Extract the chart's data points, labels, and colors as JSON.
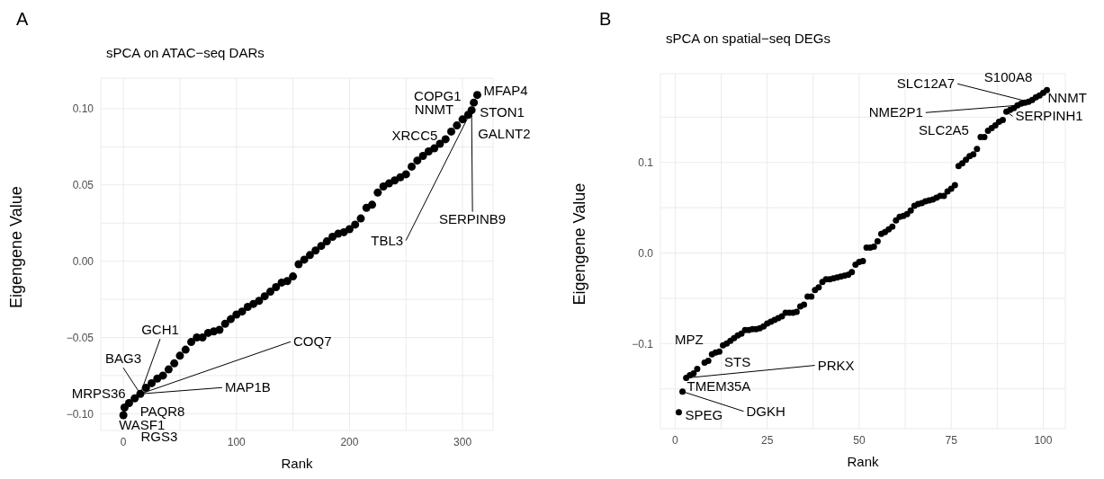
{
  "chart_data": [
    {
      "type": "scatter",
      "title": "sPCA on ATAC−seq DARs",
      "xlabel": "Rank",
      "ylabel": "Eigengene Value",
      "marker": "circle",
      "grid": true,
      "xlim": [
        -20,
        327
      ],
      "ylim": [
        -0.111,
        0.12
      ],
      "xticks": [
        0,
        {
          "value": 50,
          "label": null
        },
        100,
        {
          "value": 150,
          "label": null
        },
        200,
        {
          "value": 250,
          "label": null
        },
        300
      ],
      "yticks": [
        {
          "value": -0.1,
          "label": "−0.10"
        },
        {
          "value": -0.075,
          "label": null
        },
        {
          "value": -0.05,
          "label": "−0.05"
        },
        {
          "value": -0.025,
          "label": null
        },
        {
          "value": 0,
          "label": "0.00"
        },
        {
          "value": 0.025,
          "label": null
        },
        {
          "value": 0.05,
          "label": "0.05"
        },
        {
          "value": 0.075,
          "label": null
        },
        {
          "value": 0.1,
          "label": "0.10"
        }
      ],
      "series": [
        {
          "color": "#000000",
          "x": [
            0,
            1,
            5,
            10,
            15,
            20,
            25,
            30,
            35,
            40,
            45,
            50,
            55,
            60,
            65,
            70,
            75,
            80,
            85,
            90,
            95,
            100,
            105,
            110,
            115,
            120,
            125,
            130,
            135,
            140,
            145,
            150,
            155,
            160,
            165,
            170,
            175,
            180,
            185,
            190,
            195,
            200,
            205,
            210,
            215,
            220,
            225,
            230,
            235,
            240,
            245,
            250,
            255,
            260,
            265,
            270,
            275,
            280,
            285,
            290,
            295,
            300,
            305,
            308,
            310,
            313
          ],
          "values": [
            -0.101,
            -0.096,
            -0.093,
            -0.09,
            -0.087,
            -0.083,
            -0.08,
            -0.077,
            -0.075,
            -0.071,
            -0.067,
            -0.062,
            -0.058,
            -0.053,
            -0.05,
            -0.05,
            -0.047,
            -0.046,
            -0.045,
            -0.041,
            -0.038,
            -0.035,
            -0.033,
            -0.03,
            -0.028,
            -0.026,
            -0.023,
            -0.02,
            -0.017,
            -0.014,
            -0.013,
            -0.01,
            -0.002,
            0.001,
            0.004,
            0.007,
            0.01,
            0.013,
            0.016,
            0.018,
            0.019,
            0.021,
            0.024,
            0.028,
            0.035,
            0.037,
            0.045,
            0.049,
            0.051,
            0.053,
            0.055,
            0.057,
            0.062,
            0.066,
            0.069,
            0.072,
            0.074,
            0.077,
            0.08,
            0.085,
            0.089,
            0.093,
            0.096,
            0.099,
            0.104,
            0.109
          ]
        }
      ],
      "annotations": [
        "A",
        {
          "text": "COPG1",
          "x": 310,
          "y": 0.104
        },
        {
          "text": "MFAP4",
          "x": 313,
          "y": 0.109
        },
        {
          "text": "NNMT",
          "x": 308,
          "y": 0.099
        },
        {
          "text": "STON1",
          "x": 308,
          "y": 0.099
        },
        {
          "text": "XRCC5",
          "x": 305,
          "y": 0.096
        },
        {
          "text": "GALNT2",
          "x": 308,
          "y": 0.099
        },
        {
          "text": "TBL3",
          "x": 308,
          "y": 0.099
        },
        {
          "text": "SERPINB9",
          "x": 308,
          "y": 0.099
        },
        {
          "text": "GCH1",
          "x": 15,
          "y": -0.087
        },
        {
          "text": "BAG3",
          "x": 15,
          "y": -0.087
        },
        {
          "text": "COQ7",
          "x": 15,
          "y": -0.087
        },
        {
          "text": "MRPS36",
          "x": 10,
          "y": -0.09
        },
        {
          "text": "MAP1B",
          "x": 15,
          "y": -0.087
        },
        {
          "text": "PAQR8",
          "x": 10,
          "y": -0.09
        },
        {
          "text": "WASF1",
          "x": 0,
          "y": -0.101
        },
        {
          "text": "RGS3",
          "x": 1,
          "y": -0.096
        }
      ]
    },
    {
      "type": "scatter",
      "title": "sPCA on spatial−seq DEGs",
      "xlabel": "Rank",
      "ylabel": "Eigengene Value",
      "marker": "circle",
      "grid": true,
      "xlim": [
        -4,
        106
      ],
      "ylim": [
        -0.194,
        0.198
      ],
      "xticks": [
        0,
        {
          "value": 12.5,
          "label": null
        },
        25,
        {
          "value": 37.5,
          "label": null
        },
        50,
        {
          "value": 62.5,
          "label": null
        },
        75,
        {
          "value": 87.5,
          "label": null
        },
        100
      ],
      "yticks": [
        {
          "value": -0.15,
          "label": null
        },
        {
          "value": -0.1,
          "label": "−0.1"
        },
        {
          "value": -0.05,
          "label": null
        },
        {
          "value": 0,
          "label": "0.0"
        },
        {
          "value": 0.05,
          "label": null
        },
        0.1,
        {
          "value": 0.15,
          "label": null
        }
      ],
      "series": [
        {
          "color": "#000000",
          "x": [
            1,
            2,
            3,
            4,
            5,
            6,
            8,
            9,
            10,
            11,
            12,
            13,
            14,
            15,
            16,
            17,
            18,
            19,
            20,
            21,
            22,
            23,
            24,
            25,
            26,
            27,
            28,
            29,
            30,
            31,
            32,
            33,
            34,
            35,
            36,
            37,
            38,
            39,
            40,
            41,
            42,
            43,
            44,
            45,
            46,
            47,
            48,
            49,
            50,
            51,
            52,
            53,
            54,
            55,
            56,
            57,
            58,
            59,
            60,
            61,
            62,
            63,
            64,
            65,
            66,
            67,
            68,
            69,
            70,
            71,
            72,
            73,
            74,
            75,
            76,
            77,
            78,
            79,
            80,
            81,
            82,
            83,
            84,
            85,
            86,
            87,
            88,
            89,
            90,
            91,
            92,
            93,
            94,
            95,
            96,
            97,
            98,
            99,
            100,
            101
          ],
          "values": [
            -0.176,
            -0.153,
            -0.138,
            -0.135,
            -0.133,
            -0.128,
            -0.121,
            -0.119,
            -0.112,
            -0.11,
            -0.109,
            -0.102,
            -0.1,
            -0.097,
            -0.094,
            -0.091,
            -0.089,
            -0.085,
            -0.085,
            -0.084,
            -0.084,
            -0.083,
            -0.081,
            -0.078,
            -0.076,
            -0.074,
            -0.072,
            -0.07,
            -0.066,
            -0.066,
            -0.066,
            -0.065,
            -0.059,
            -0.057,
            -0.048,
            -0.048,
            -0.041,
            -0.038,
            -0.032,
            -0.029,
            -0.029,
            -0.028,
            -0.027,
            -0.026,
            -0.025,
            -0.024,
            -0.021,
            -0.013,
            -0.01,
            -0.009,
            0.006,
            0.006,
            0.007,
            0.013,
            0.021,
            0.023,
            0.026,
            0.029,
            0.036,
            0.04,
            0.041,
            0.043,
            0.047,
            0.052,
            0.054,
            0.055,
            0.057,
            0.058,
            0.059,
            0.061,
            0.063,
            0.063,
            0.068,
            0.071,
            0.075,
            0.096,
            0.099,
            0.103,
            0.107,
            0.109,
            0.115,
            0.128,
            0.128,
            0.135,
            0.138,
            0.141,
            0.145,
            0.147,
            0.156,
            0.158,
            0.16,
            0.163,
            0.165,
            0.166,
            0.167,
            0.169,
            0.172,
            0.174,
            0.177,
            0.18
          ]
        }
      ],
      "annotations": [
        "B",
        {
          "text": "SPEG",
          "x": 1,
          "y": -0.176
        },
        {
          "text": "TMEM35A",
          "x": 2,
          "y": -0.153
        },
        {
          "text": "DGKH",
          "x": 2,
          "y": -0.153
        },
        {
          "text": "PRKX",
          "x": 3,
          "y": -0.138
        },
        {
          "text": "STS",
          "x": 3,
          "y": -0.138
        },
        {
          "text": "MPZ",
          "x": 5,
          "y": -0.133
        },
        {
          "text": "NNMT",
          "x": 101,
          "y": 0.18
        },
        {
          "text": "S100A8",
          "x": 101,
          "y": 0.18
        },
        {
          "text": "SLC12A7",
          "x": 96,
          "y": 0.167
        },
        {
          "text": "NME2P1",
          "x": 93,
          "y": 0.163
        },
        {
          "text": "SERPINH1",
          "x": 90,
          "y": 0.156
        },
        {
          "text": "SLC2A5",
          "x": 83,
          "y": 0.128
        }
      ]
    }
  ]
}
